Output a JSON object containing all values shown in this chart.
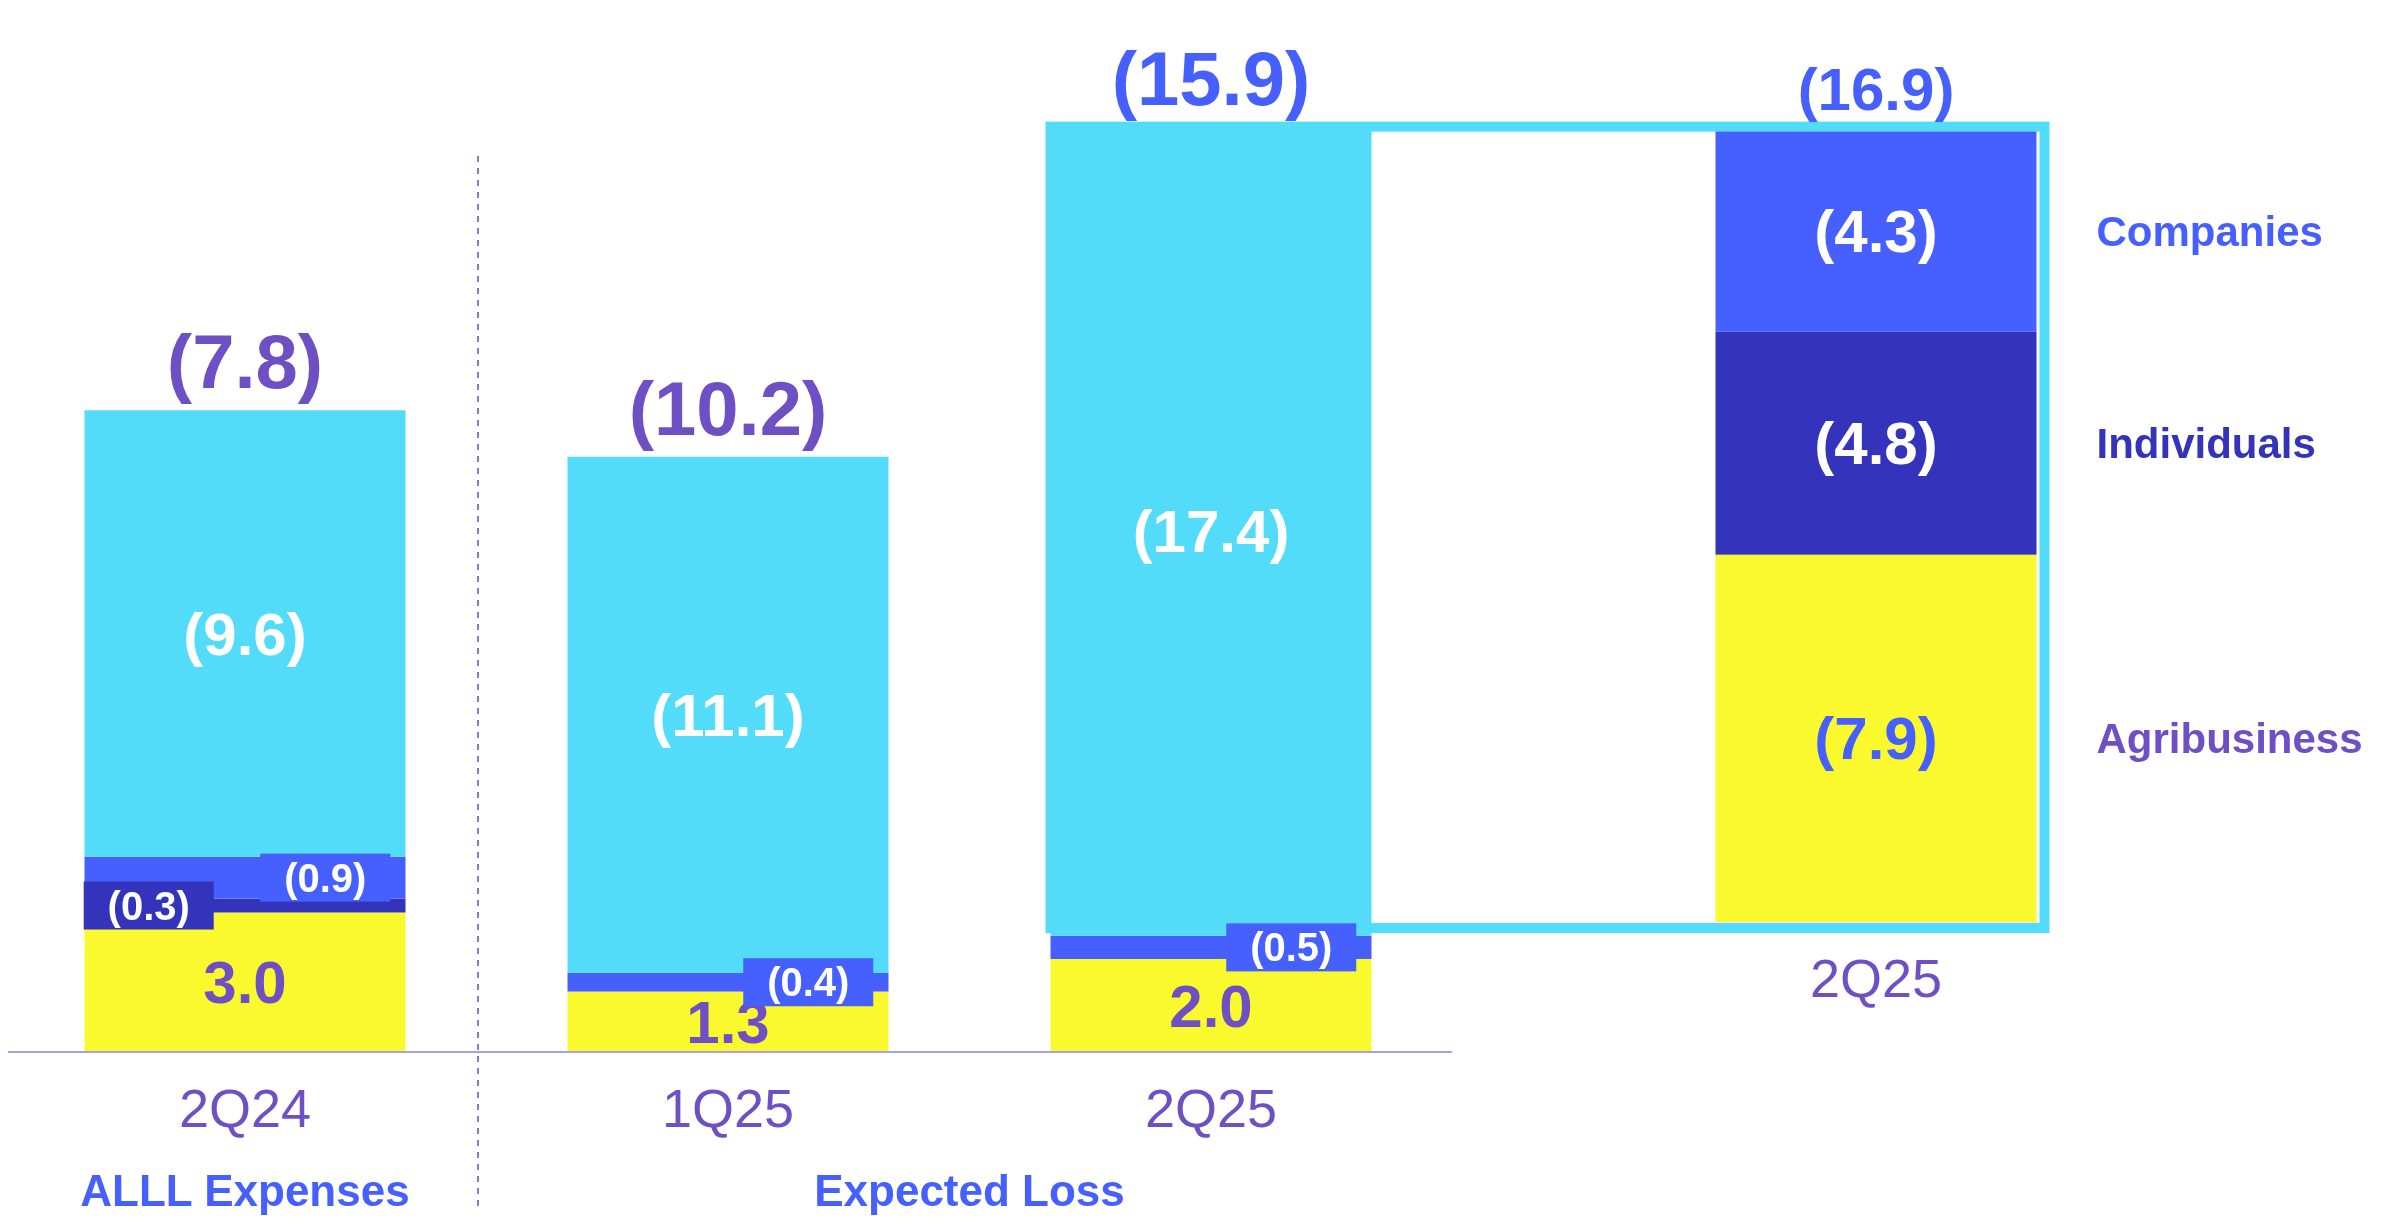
{
  "chart_data": [
    {
      "type": "bar",
      "stacked": true,
      "categories": [
        "2Q24",
        "1Q25",
        "2Q25"
      ],
      "tick_labels": "x",
      "series": [
        {
          "color": "#f9f92e",
          "values": [
            3.0,
            1.3,
            2.0
          ],
          "value_labels": [
            "3.0",
            "1.3",
            "2.0"
          ]
        },
        {
          "color": "#3333bb",
          "values": [
            0.3,
            null,
            null
          ],
          "value_labels": [
            "(0.3)",
            null,
            null
          ]
        },
        {
          "color": "#4560ff",
          "values": [
            0.9,
            0.4,
            0.5
          ],
          "value_labels": [
            "(0.9)",
            "(0.4)",
            "(0.5)"
          ]
        },
        {
          "color": "#53dcfa",
          "values": [
            9.6,
            11.1,
            17.4
          ],
          "value_labels": [
            "(9.6)",
            "(11.1)",
            "(17.4)"
          ]
        }
      ],
      "annotations": [
        {
          "text": "(7.8)",
          "x": "2Q24",
          "y": 13.8
        },
        {
          "text": "(10.2)",
          "x": "1Q25",
          "y": 12.8
        },
        {
          "text": "(15.9)",
          "x": "2Q25",
          "y": 19.9
        },
        "ALLL Expenses",
        "Expected Loss"
      ]
    },
    {
      "type": "bar",
      "stacked": true,
      "categories": [
        "2Q25"
      ],
      "tick_labels": "x",
      "legend": "right",
      "series": [
        {
          "name": "Agribusiness",
          "color": "#f9f92e",
          "values": [
            7.9
          ],
          "value_labels": [
            "(7.9)"
          ]
        },
        {
          "name": "Individuals",
          "color": "#3333bb",
          "values": [
            4.8
          ],
          "value_labels": [
            "(4.8)"
          ]
        },
        {
          "name": "Companies",
          "color": "#4560ff",
          "values": [
            4.3
          ],
          "value_labels": [
            "(4.3)"
          ]
        }
      ],
      "annotations": [
        {
          "text": "(16.9)",
          "x": "2Q25",
          "y": 17.0
        }
      ]
    }
  ]
}
